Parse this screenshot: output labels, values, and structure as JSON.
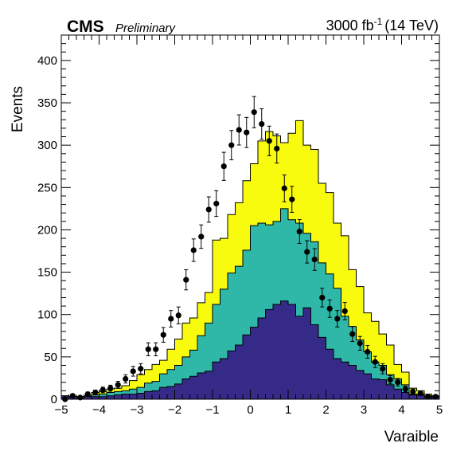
{
  "header": {
    "experiment": "CMS",
    "status": "Preliminary",
    "lumi_value": "3000 fb",
    "lumi_exp": "-1",
    "energy": "(14 TeV)"
  },
  "chart_data": {
    "type": "bar",
    "style": "stacked-histogram-with-data-points",
    "xlabel": "Varaible",
    "ylabel": "Events",
    "xlim": [
      -5,
      5
    ],
    "ylim": [
      0,
      430
    ],
    "x_ticks": [
      -5,
      -4,
      -3,
      -2,
      -1,
      0,
      1,
      2,
      3,
      4,
      5
    ],
    "y_ticks": [
      0,
      50,
      100,
      150,
      200,
      250,
      300,
      350,
      400
    ],
    "bin_edges_start": -5,
    "bin_width": 0.2,
    "colors": {
      "bottom": "#352a87",
      "middle": "#2fb8a8",
      "top": "#f9fb0e",
      "outline": "#000000",
      "points": "#000000"
    },
    "series": [
      {
        "role": "stack-bottom",
        "color": "#352a87",
        "values": [
          4,
          3,
          3,
          3,
          3,
          3,
          4,
          5,
          6,
          6,
          7,
          9,
          10,
          14,
          15,
          18,
          24,
          27,
          31,
          33,
          44,
          48,
          57,
          64,
          76,
          85,
          96,
          106,
          112,
          116,
          112,
          98,
          108,
          88,
          73,
          59,
          48,
          44,
          40,
          34,
          30,
          24,
          23,
          17,
          12,
          8,
          5,
          5,
          3,
          3
        ]
      },
      {
        "role": "stack-middle",
        "color": "#2fb8a8",
        "values": [
          4,
          3,
          3,
          4,
          5,
          6,
          8,
          9,
          10,
          12,
          14,
          19,
          21,
          30,
          35,
          40,
          50,
          58,
          75,
          90,
          112,
          130,
          149,
          157,
          176,
          205,
          208,
          206,
          210,
          225,
          212,
          208,
          196,
          186,
          161,
          148,
          131,
          98,
          86,
          70,
          56,
          44,
          40,
          29,
          24,
          17,
          6,
          6,
          4,
          4
        ]
      },
      {
        "role": "stack-top",
        "color": "#f9fb0e",
        "values": [
          4,
          3,
          3,
          4,
          8,
          9,
          12,
          13,
          16,
          22,
          29,
          35,
          41,
          46,
          59,
          71,
          90,
          96,
          114,
          126,
          188,
          190,
          218,
          232,
          258,
          278,
          305,
          316,
          311,
          303,
          314,
          329,
          300,
          295,
          255,
          244,
          208,
          193,
          153,
          133,
          102,
          92,
          77,
          64,
          41,
          32,
          13,
          10,
          6,
          4
        ]
      },
      {
        "role": "data",
        "color": "#000000",
        "values": [
          0,
          4,
          2,
          6,
          8,
          11,
          13,
          17,
          24,
          33,
          36,
          59,
          59,
          76,
          95,
          99,
          141,
          176,
          192,
          224,
          231,
          275,
          300,
          318,
          315,
          339,
          325,
          305,
          296,
          249,
          236,
          198,
          174,
          165,
          120,
          107,
          95,
          104,
          77,
          66,
          56,
          44,
          36,
          23,
          20,
          12,
          9,
          7,
          3,
          3
        ]
      }
    ]
  }
}
